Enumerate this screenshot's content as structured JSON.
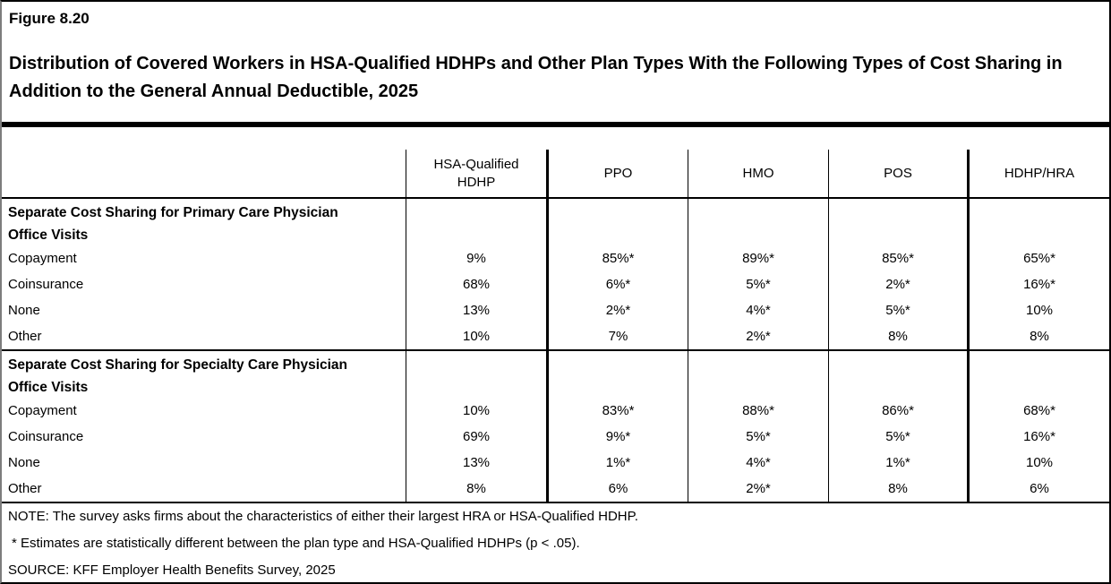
{
  "chart_data": {
    "type": "table",
    "figure_label": "Figure 8.20",
    "title": "Distribution of Covered Workers in HSA-Qualified HDHPs and Other Plan Types With the Following Types of Cost Sharing in Addition to the General Annual Deductible, 2025",
    "columns": [
      "HSA-Qualified HDHP",
      "PPO",
      "HMO",
      "POS",
      "HDHP/HRA"
    ],
    "sections": [
      {
        "header": "Separate Cost Sharing for Primary Care Physician Office Visits",
        "rows": [
          {
            "label": "Copayment",
            "values": [
              "9%",
              "85%*",
              "89%*",
              "85%*",
              "65%*"
            ]
          },
          {
            "label": "Coinsurance",
            "values": [
              "68%",
              "6%*",
              "5%*",
              "2%*",
              "16%*"
            ]
          },
          {
            "label": "None",
            "values": [
              "13%",
              "2%*",
              "4%*",
              "5%*",
              "10%"
            ]
          },
          {
            "label": "Other",
            "values": [
              "10%",
              "7%",
              "2%*",
              "8%",
              "8%"
            ]
          }
        ]
      },
      {
        "header": "Separate Cost Sharing for Specialty Care Physician Office Visits",
        "rows": [
          {
            "label": "Copayment",
            "values": [
              "10%",
              "83%*",
              "88%*",
              "86%*",
              "68%*"
            ]
          },
          {
            "label": "Coinsurance",
            "values": [
              "69%",
              "9%*",
              "5%*",
              "5%*",
              "16%*"
            ]
          },
          {
            "label": "None",
            "values": [
              "13%",
              "1%*",
              "4%*",
              "1%*",
              "10%"
            ]
          },
          {
            "label": "Other",
            "values": [
              "8%",
              "6%",
              "2%*",
              "8%",
              "6%"
            ]
          }
        ]
      }
    ],
    "layout_hints": {
      "thick_column_separators_after": [
        "HSA-Qualified HDHP",
        "POS"
      ],
      "grid": "on",
      "value_alignment": "center"
    }
  },
  "notes": {
    "note": "NOTE: The survey asks firms about the characteristics of either their largest HRA or HSA-Qualified HDHP.",
    "asterisk": "* Estimates are statistically different between the plan type and HSA-Qualified HDHPs (p < .05).",
    "source": "SOURCE: KFF Employer Health Benefits Survey, 2025"
  },
  "colors": {
    "text": "#000000",
    "background": "#ffffff",
    "border": "#000000"
  }
}
